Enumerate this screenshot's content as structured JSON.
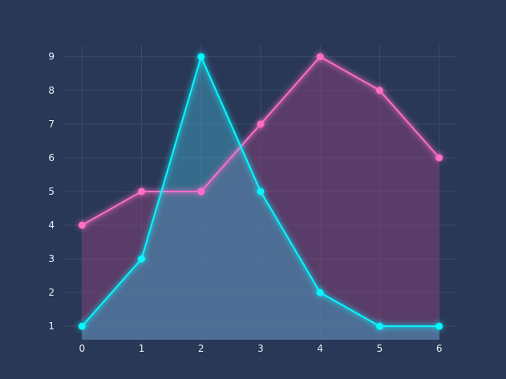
{
  "chart_data": {
    "type": "area",
    "x": [
      0,
      1,
      2,
      3,
      4,
      5,
      6
    ],
    "xlim": [
      -0.3,
      6.3
    ],
    "ylim": [
      0.6,
      9.35
    ],
    "xticks": [
      "0",
      "1",
      "2",
      "3",
      "4",
      "5",
      "6"
    ],
    "yticks": [
      "1",
      "2",
      "3",
      "4",
      "5",
      "6",
      "7",
      "8",
      "9"
    ],
    "grid": true,
    "colors": {
      "background": "#2a3858",
      "grid": "#3c4a6a",
      "tick_text": "#e8ecf4"
    },
    "series": [
      {
        "values": [
          4,
          5,
          5,
          7,
          9,
          8,
          6
        ],
        "color": "#ff6ec7",
        "fill": "#8a3f7a"
      },
      {
        "values": [
          1,
          3,
          9,
          5,
          2,
          1,
          1
        ],
        "color": "#08f7fe",
        "fill": "#3fa0c0"
      }
    ]
  }
}
